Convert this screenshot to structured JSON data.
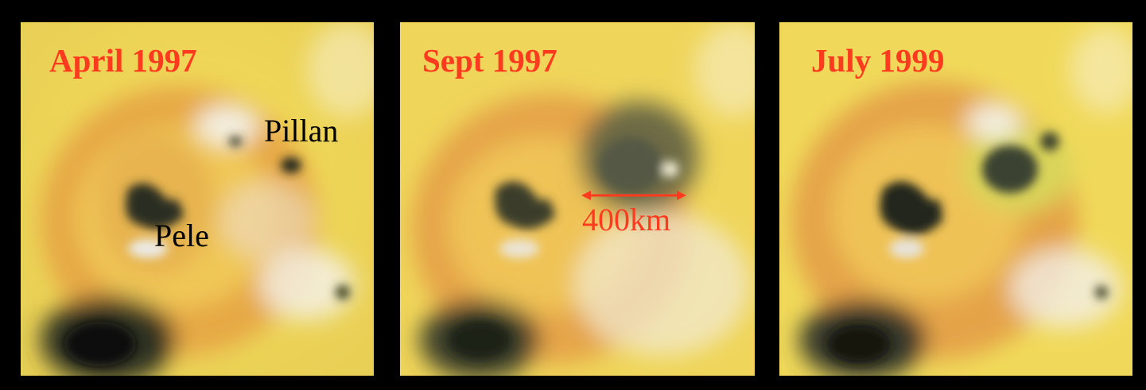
{
  "panels": [
    {
      "date": "April 1997"
    },
    {
      "date": "Sept 1997"
    },
    {
      "date": "July 1999"
    }
  ],
  "features": {
    "pillan": "Pillan",
    "pele": "Pele"
  },
  "scale": {
    "label": "400km",
    "color": "#ff3a1f"
  },
  "colors": {
    "background": "#000000",
    "label_red": "#ff3a1f",
    "surface_yellow": "#f2d64a",
    "ring_orange": "#d98a3a",
    "dark_deposit": "#3b3f2a"
  }
}
